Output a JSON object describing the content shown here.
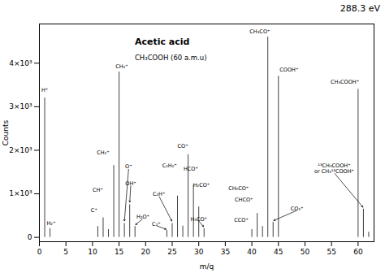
{
  "chart_data": {
    "type": "stem",
    "title": "288.3 eV",
    "x_label": "m/q",
    "y_label": "Counts",
    "xlim": [
      0,
      63
    ],
    "ylim": [
      -100,
      4900
    ],
    "xticks": [
      0,
      5,
      10,
      15,
      20,
      25,
      30,
      35,
      40,
      45,
      50,
      55,
      60
    ],
    "yticks": [
      0,
      {
        "value": 1000,
        "label": "1×10³"
      },
      {
        "value": 2000,
        "label": "2×10³"
      },
      {
        "value": 3000,
        "label": "3×10³"
      },
      {
        "value": 4000,
        "label": "4×10³"
      }
    ],
    "color": "#404040",
    "x": [
      1,
      2,
      11,
      12,
      13,
      14,
      15,
      16,
      17,
      18,
      24,
      25,
      26,
      27,
      28,
      29,
      30,
      31,
      40,
      41,
      42,
      43,
      44,
      45,
      60,
      61,
      62
    ],
    "values": [
      3200,
      200,
      250,
      450,
      180,
      1650,
      3800,
      320,
      750,
      250,
      160,
      320,
      950,
      260,
      1900,
      1200,
      700,
      200,
      180,
      550,
      250,
      4600,
      350,
      3700,
      3400,
      650,
      120
    ],
    "annotations": [
      {
        "text": "Acetic acid"
      },
      {
        "text": "CH₃COOH (60 a.m.u)"
      },
      {
        "text": "H⁺",
        "x": 1.0,
        "y": 3350
      },
      {
        "text": "H₂⁺",
        "x": 2.2,
        "y": 280
      },
      {
        "text": "C⁺",
        "x": 10.3,
        "y": 590
      },
      {
        "text": "CH⁺",
        "x": 11.0,
        "y": 1050
      },
      {
        "text": "CH₂⁺",
        "x": 12.0,
        "y": 1900
      },
      {
        "text": "CH₃⁺",
        "x": 15.5,
        "y": 3880
      },
      {
        "text": "O⁺",
        "x": 16.8,
        "y": 1580,
        "arrow_x": 16.0,
        "arrow_y": 360
      },
      {
        "text": "OH⁺",
        "x": 17.2,
        "y": 1200,
        "arrow_x": 17.0,
        "arrow_y": 790
      },
      {
        "text": "H₂O⁺",
        "x": 19.5,
        "y": 430,
        "arrow_x": 18.0,
        "arrow_y": 280
      },
      {
        "text": "C₂⁺",
        "x": 22.0,
        "y": 270,
        "arrow_x": 24.0,
        "arrow_y": 180
      },
      {
        "text": "C₂H⁺",
        "x": 22.5,
        "y": 950,
        "arrow_x": 25.0,
        "arrow_y": 360
      },
      {
        "text": "C₂H₂⁺",
        "x": 24.5,
        "y": 1600
      },
      {
        "text": "CO⁺",
        "x": 27.0,
        "y": 2050
      },
      {
        "text": "HCO⁺",
        "x": 28.5,
        "y": 1540
      },
      {
        "text": "H₂CO⁺",
        "x": 30.5,
        "y": 1160
      },
      {
        "text": "H₃CO⁺",
        "x": 30.0,
        "y": 380,
        "arrow_x": 31.0,
        "arrow_y": 230
      },
      {
        "text": "CH₃CO⁺",
        "x": 41.5,
        "y": 4680
      },
      {
        "text": "CH₂CO⁺",
        "x": 37.5,
        "y": 1080
      },
      {
        "text": "CHCO⁺",
        "x": 38.5,
        "y": 820
      },
      {
        "text": "CCO⁺",
        "x": 38.0,
        "y": 360
      },
      {
        "text": "COOH⁺",
        "x": 47.0,
        "y": 3800
      },
      {
        "text": "CO₂⁺",
        "x": 48.5,
        "y": 620,
        "arrow_x": 44.0,
        "arrow_y": 380
      },
      {
        "text": "CH₃COOH⁺",
        "x": 57.5,
        "y": 3530
      },
      {
        "text": "¹³CH₃COOH⁺\nor CH₃¹³COOH⁺",
        "x": 55.5,
        "y": 1480,
        "arrow_x": 61.0,
        "arrow_y": 680
      }
    ]
  }
}
